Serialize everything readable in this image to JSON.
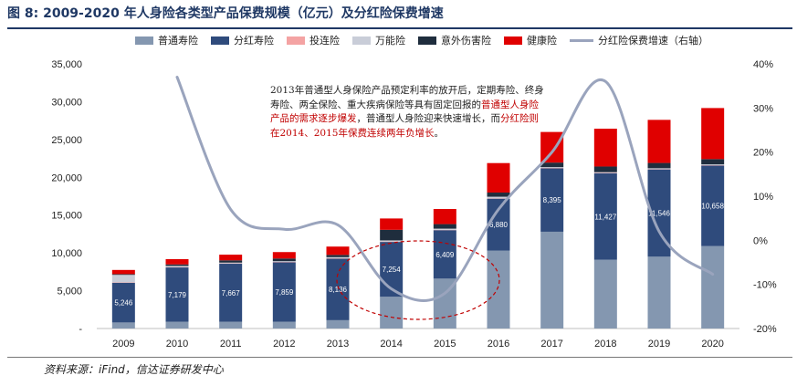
{
  "title": "图 8:  2009-2020 年人身险各类型产品保费规模（亿元）及分红险保费增速",
  "source": "资料来源：iFind，信达证券研发中心",
  "annotation": {
    "p1": "2013年普通型人身保险产品预定利率的放开后，定期寿险、终身寿险、两全保险、重大疾病保险等具有固定回报的",
    "r1": "普通型人身险产品的需求逐步爆发",
    "p2": "，普通型人身险迎来快速增长，而",
    "r2": "分红险则在2014、2015年保费连续两年负增长",
    "p3": "。"
  },
  "colors": {
    "ordinary": "#8497b0",
    "dividend": "#2f4b7c",
    "investment": "#f4a3a3",
    "universal": "#c9cdd8",
    "accident": "#1f2d3d",
    "health": "#e00000",
    "growth_line": "#9aa4bd",
    "ellipse": "#c00000"
  },
  "chart_data": {
    "type": "bar",
    "stacked": true,
    "title": "2009-2020 年人身险各类型产品保费规模（亿元）及分红险保费增速",
    "categories": [
      "2009",
      "2010",
      "2011",
      "2012",
      "2013",
      "2014",
      "2015",
      "2016",
      "2017",
      "2018",
      "2019",
      "2020"
    ],
    "series": [
      {
        "name": "普通寿险",
        "color_key": "ordinary",
        "values": [
          800,
          900,
          900,
          900,
          1100,
          4200,
          6600,
          10300,
          12800,
          9100,
          9500,
          10900
        ]
      },
      {
        "name": "分红寿险",
        "color_key": "dividend",
        "values": [
          5246,
          7179,
          7667,
          7859,
          8136,
          7254,
          6409,
          6880,
          8395,
          11427,
          11546,
          10658
        ]
      },
      {
        "name": "投连险",
        "color_key": "investment",
        "values": [
          50,
          50,
          50,
          50,
          50,
          50,
          50,
          50,
          50,
          50,
          50,
          50
        ]
      },
      {
        "name": "万能险",
        "color_key": "universal",
        "values": [
          1000,
          150,
          100,
          100,
          150,
          150,
          150,
          200,
          100,
          100,
          100,
          100
        ]
      },
      {
        "name": "意外伤害险",
        "color_key": "accident",
        "values": [
          100,
          200,
          300,
          350,
          300,
          1400,
          600,
          550,
          600,
          750,
          700,
          700
        ]
      },
      {
        "name": "健康险",
        "color_key": "health",
        "values": [
          550,
          700,
          750,
          850,
          1100,
          1500,
          2000,
          3900,
          4050,
          5000,
          5700,
          6750
        ]
      }
    ],
    "dividend_labels": [
      "5,246",
      "7,179",
      "7,667",
      "7,859",
      "8,136",
      "7,254",
      "6,409",
      "6,880",
      "8,395",
      "11,427",
      "11,546",
      "10,658"
    ],
    "line_series": {
      "name": "分红险保费增速（右轴）",
      "color_key": "growth_line",
      "values": [
        null,
        37,
        7,
        2.5,
        3.5,
        -11,
        -12,
        7,
        20,
        36,
        2,
        -7.7
      ]
    },
    "y_left": {
      "min": 0,
      "max": 35000,
      "ticks": [
        0,
        5000,
        10000,
        15000,
        20000,
        25000,
        30000,
        35000
      ],
      "tick_labels": [
        "-",
        "5,000",
        "10,000",
        "15,000",
        "20,000",
        "25,000",
        "30,000",
        "35,000"
      ]
    },
    "y_right": {
      "min": -20,
      "max": 40,
      "ticks": [
        -20,
        -10,
        0,
        10,
        20,
        30,
        40
      ],
      "tick_labels": [
        "-20%",
        "-10%",
        "0%",
        "10%",
        "20%",
        "30%",
        "40%"
      ]
    },
    "legend": [
      "普通寿险",
      "分红寿险",
      "投连险",
      "万能险",
      "意外伤害险",
      "健康险",
      "分红险保费增速（右轴）"
    ],
    "legend_position": "top"
  }
}
